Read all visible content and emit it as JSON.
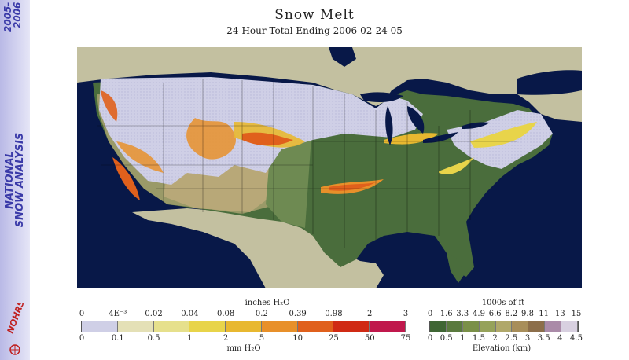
{
  "branding": {
    "years_line1": "2005-",
    "years_line2": "2006",
    "title_line1": "NATIONAL",
    "title_line2": "SNOW ANALYSIS",
    "logo_text": "NOHRSC"
  },
  "header": {
    "title": "Snow Melt",
    "subtitle": "24-Hour Total Ending 2006-02-24 05"
  },
  "legend_melt": {
    "top_label": "inches H₂O",
    "bottom_label": "mm H₂O",
    "top_ticks": [
      "0",
      "4E⁻³",
      "0.02",
      "0.04",
      "0.08",
      "0.2",
      "0.39",
      "0.98",
      "2",
      "3"
    ],
    "bottom_ticks": [
      "0",
      "0.1",
      "0.5",
      "1",
      "2",
      "5",
      "10",
      "25",
      "50",
      "75"
    ],
    "colors": [
      "#cfcfe6",
      "#e4e0b6",
      "#e6e08c",
      "#e8d44a",
      "#e8b830",
      "#e8902a",
      "#e0601c",
      "#d02a14",
      "#c0184c"
    ]
  },
  "legend_elev": {
    "top_label": "1000s of ft",
    "bottom_label": "Elevation (km)",
    "top_ticks": [
      "0",
      "1.6",
      "3.3",
      "4.9",
      "6.6",
      "8.2",
      "9.8",
      "11",
      "13",
      "15"
    ],
    "bottom_ticks": [
      "0",
      "0.5",
      "1",
      "1.5",
      "2",
      "2.5",
      "3",
      "3.5",
      "4",
      "4.5"
    ],
    "colors": [
      "#3f6634",
      "#5a7a3e",
      "#7a9048",
      "#96a25a",
      "#b0a86a",
      "#a88e5a",
      "#8c6e4a",
      "#aa8aa8",
      "#d8d0e0"
    ]
  }
}
